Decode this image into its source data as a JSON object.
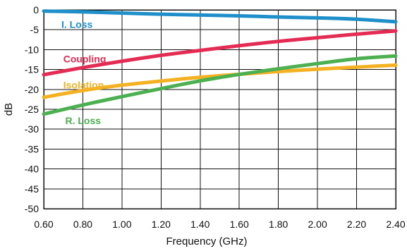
{
  "chart_data": {
    "type": "line",
    "title": "",
    "xlabel": "Frequency (GHz)",
    "ylabel": "dB",
    "xlim": [
      0.6,
      2.4
    ],
    "ylim": [
      -50,
      0
    ],
    "x_ticks": [
      "0.60",
      "0.80",
      "1.00",
      "1.20",
      "1.40",
      "1.60",
      "1.80",
      "2.00",
      "2.20",
      "2.40"
    ],
    "y_ticks": [
      "0",
      "-5",
      "-10",
      "-15",
      "-20",
      "-25",
      "-30",
      "-35",
      "-40",
      "-45",
      "-50"
    ],
    "grid": true,
    "series": [
      {
        "name": "I. Loss",
        "color": "#1f8fc9",
        "x": [
          0.6,
          0.8,
          1.0,
          1.2,
          1.4,
          1.6,
          1.8,
          2.0,
          2.2,
          2.4
        ],
        "y": [
          -0.3,
          -0.5,
          -0.8,
          -1.1,
          -1.3,
          -1.5,
          -1.8,
          -2.0,
          -2.3,
          -3.0
        ]
      },
      {
        "name": "Coupling",
        "color": "#e42b53",
        "x": [
          0.6,
          0.8,
          1.0,
          1.2,
          1.4,
          1.6,
          1.8,
          2.0,
          2.2,
          2.4
        ],
        "y": [
          -16.3,
          -14.5,
          -12.9,
          -11.4,
          -10.2,
          -9.0,
          -7.9,
          -7.0,
          -6.1,
          -5.3
        ]
      },
      {
        "name": "Isolation",
        "color": "#f4b223",
        "x": [
          0.6,
          0.8,
          1.0,
          1.2,
          1.4,
          1.6,
          1.8,
          2.0,
          2.2,
          2.4
        ],
        "y": [
          -22.0,
          -20.2,
          -18.9,
          -17.9,
          -16.9,
          -16.2,
          -15.5,
          -14.9,
          -14.4,
          -13.9
        ]
      },
      {
        "name": "R. Loss",
        "color": "#4caf50",
        "x": [
          0.6,
          0.8,
          1.0,
          1.2,
          1.4,
          1.6,
          1.8,
          2.0,
          2.2,
          2.4
        ],
        "y": [
          -26.2,
          -23.9,
          -21.8,
          -19.8,
          -17.8,
          -16.2,
          -14.8,
          -13.5,
          -12.2,
          -11.6
        ]
      }
    ]
  }
}
